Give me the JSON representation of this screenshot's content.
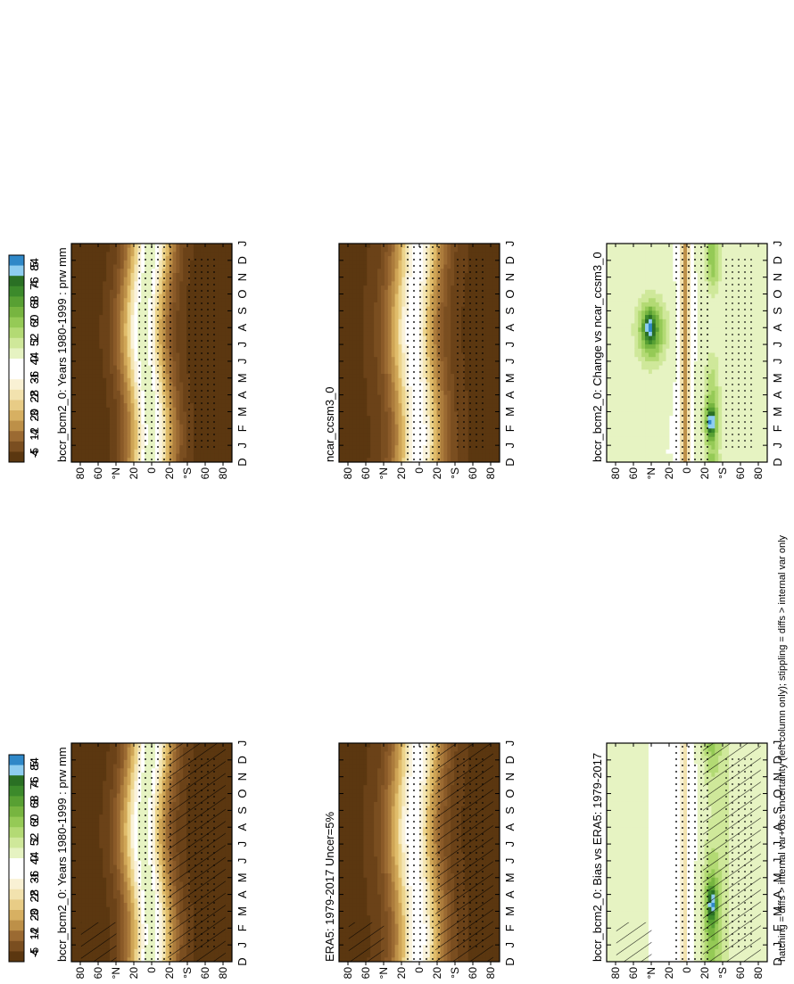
{
  "footnote": "hatching = diffs > internal var+obs uncertainty (left column only); stippling = diffs > internal var only",
  "colors": {
    "prw": [
      "#5b3710",
      "#6b4218",
      "#7a4e20",
      "#8a5a28",
      "#9b6a32",
      "#ac7c3c",
      "#bd9048",
      "#cfa556",
      "#e0bc6a",
      "#ecd48c",
      "#f4e6b4",
      "#faf3dc",
      "#ffffff",
      "#e6f3c2",
      "#cfe89a",
      "#b3da74",
      "#95ca56",
      "#77b540",
      "#58a033",
      "#3c8a2b",
      "#2a7024",
      "#8ecdf0",
      "#2f88c8"
    ],
    "diff": [
      "#5b3710",
      "#7a4e20",
      "#9b6a32",
      "#bd9048",
      "#d7b062",
      "#e8cc86",
      "#f2e2ae",
      "#f9f1d4",
      "#ffffff",
      "#ffffff",
      "#e6f3c2",
      "#cfe89a",
      "#b3da74",
      "#95ca56",
      "#77b540",
      "#58a033",
      "#3c8a2b",
      "#2a7024",
      "#8ecdf0",
      "#2f88c8"
    ]
  },
  "chart_data": [
    {
      "type": "heatmap",
      "panel": "top-left",
      "title": "bccr_bcm2_0: Years 1980-1999 : prw mm",
      "x_ticks": [
        "D",
        "J",
        "F",
        "M",
        "A",
        "M",
        "J",
        "J",
        "A",
        "S",
        "O",
        "N",
        "D",
        "J"
      ],
      "y_ticks": [
        "80",
        "60",
        "°N",
        "20",
        "0",
        "20",
        "°S",
        "60",
        "80"
      ],
      "colorbar": {
        "labels": [
          "84",
          "76",
          "68",
          "60",
          "52",
          "44",
          "36",
          "28",
          "20",
          "12",
          "4"
        ],
        "range": [
          0,
          88
        ],
        "placement": "right"
      },
      "y_range": [
        -90,
        90
      ],
      "overlay": [
        "hatching",
        "stippling"
      ]
    },
    {
      "type": "heatmap",
      "panel": "top-right",
      "title": "bccr_bcm2_0: Years 1980-1999 : prw mm",
      "x_ticks": [
        "D",
        "J",
        "F",
        "M",
        "A",
        "M",
        "J",
        "J",
        "A",
        "S",
        "O",
        "N",
        "D",
        "J"
      ],
      "y_ticks": [
        "80",
        "60",
        "°N",
        "20",
        "0",
        "20",
        "°S",
        "60",
        "80"
      ],
      "colorbar": {
        "labels": [
          "84",
          "76",
          "68",
          "60",
          "52",
          "44",
          "36",
          "28",
          "20",
          "12",
          "4"
        ],
        "range": [
          0,
          88
        ],
        "placement": "right"
      },
      "y_range": [
        -90,
        90
      ],
      "overlay": [
        "stippling"
      ]
    },
    {
      "type": "heatmap",
      "panel": "middle-left",
      "title": "ERA5: 1979-2017 Uncer=5%",
      "x_ticks": [
        "D",
        "J",
        "F",
        "M",
        "A",
        "M",
        "J",
        "J",
        "A",
        "S",
        "O",
        "N",
        "D",
        "J"
      ],
      "y_ticks": [
        "80",
        "60",
        "°N",
        "20",
        "0",
        "20",
        "°S",
        "60",
        "80"
      ],
      "colorbar": {
        "labels": [
          "84",
          "76",
          "68",
          "60",
          "52",
          "44",
          "36",
          "28",
          "20",
          "12",
          "4"
        ],
        "range": [
          0,
          88
        ],
        "placement": "right"
      },
      "y_range": [
        -90,
        90
      ],
      "overlay": [
        "hatching",
        "stippling"
      ]
    },
    {
      "type": "heatmap",
      "panel": "middle-right",
      "title": "ncar_ccsm3_0",
      "x_ticks": [
        "D",
        "J",
        "F",
        "M",
        "A",
        "M",
        "J",
        "J",
        "A",
        "S",
        "O",
        "N",
        "D",
        "J"
      ],
      "y_ticks": [
        "80",
        "60",
        "°N",
        "20",
        "0",
        "20",
        "°S",
        "60",
        "80"
      ],
      "colorbar": {
        "labels": [
          "84",
          "76",
          "68",
          "60",
          "52",
          "44",
          "36",
          "28",
          "20",
          "12",
          "4"
        ],
        "range": [
          0,
          88
        ],
        "placement": "right"
      },
      "y_range": [
        -90,
        90
      ],
      "overlay": [
        "stippling"
      ]
    },
    {
      "type": "heatmap",
      "panel": "bottom-left",
      "title": "bccr_bcm2_0: Bias vs ERA5: 1979-2017",
      "x_ticks": [
        "D",
        "J",
        "F",
        "M",
        "A",
        "M",
        "J",
        "J",
        "A",
        "S",
        "O",
        "N",
        "D",
        "J"
      ],
      "y_ticks": [
        "80",
        "60",
        "°N",
        "20",
        "0",
        "20",
        "°S",
        "60",
        "80"
      ],
      "colorbar": {
        "labels": [
          "5",
          "4",
          "3",
          "2",
          "1",
          "0",
          "-1",
          "-2",
          "-3",
          "-4",
          "-5"
        ],
        "range": [
          -5.5,
          5.5
        ],
        "placement": "right"
      },
      "y_range": [
        -90,
        90
      ],
      "overlay": [
        "hatching",
        "stippling"
      ]
    },
    {
      "type": "heatmap",
      "panel": "bottom-right",
      "title": "bccr_bcm2_0: Change vs ncar_ccsm3_0",
      "x_ticks": [
        "D",
        "J",
        "F",
        "M",
        "A",
        "M",
        "J",
        "J",
        "A",
        "S",
        "O",
        "N",
        "D",
        "J"
      ],
      "y_ticks": [
        "80",
        "60",
        "°N",
        "20",
        "0",
        "20",
        "°S",
        "60",
        "80"
      ],
      "colorbar": {
        "labels": [
          "5",
          "4",
          "3",
          "2",
          "1",
          "0",
          "-1",
          "-2",
          "-3",
          "-4",
          "-5"
        ],
        "range": [
          -5.5,
          5.5
        ],
        "placement": "right"
      },
      "y_range": [
        -90,
        90
      ],
      "overlay": [
        "stippling"
      ]
    }
  ]
}
